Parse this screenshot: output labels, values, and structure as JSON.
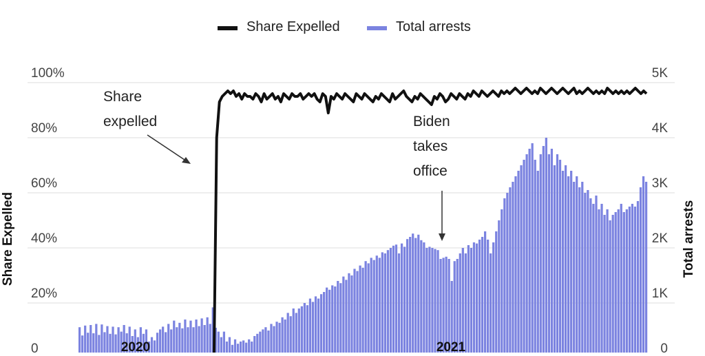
{
  "chart_data": {
    "type": "bar",
    "legend": {
      "placement": "top-center",
      "items": [
        {
          "label": "Share Expelled",
          "color": "#111111",
          "marker": "line"
        },
        {
          "label": "Total arrests",
          "color": "#7b83e0",
          "marker": "bar"
        }
      ]
    },
    "y_left": {
      "label": "Share Expelled",
      "range": [
        0,
        100
      ],
      "ticks": [
        0,
        20,
        40,
        60,
        80,
        100
      ],
      "tick_labels": [
        "0",
        "20%",
        "40%",
        "60%",
        "80%",
        "100%"
      ]
    },
    "y_right": {
      "label": "Total arrests",
      "range": [
        0,
        5000
      ],
      "ticks": [
        0,
        1000,
        2000,
        3000,
        4000,
        5000
      ],
      "tick_labels": [
        "0",
        "1K",
        "2K",
        "3K",
        "4K",
        "5K"
      ]
    },
    "x_labels": [
      "2020",
      "2021"
    ],
    "grid": true,
    "series": [
      {
        "name": "Total arrests",
        "kind": "bar",
        "color": "#7b83e0",
        "axis": "right",
        "values": [
          560,
          410,
          590,
          460,
          600,
          450,
          620,
          420,
          610,
          470,
          580,
          440,
          570,
          430,
          560,
          480,
          600,
          450,
          570,
          400,
          520,
          380,
          560,
          440,
          520,
          300,
          380,
          320,
          460,
          520,
          570,
          470,
          620,
          520,
          680,
          560,
          640,
          540,
          700,
          560,
          680,
          560,
          700,
          580,
          720,
          600,
          740,
          620,
          920,
          550,
          480,
          380,
          480,
          300,
          380,
          240,
          340,
          260,
          300,
          320,
          280,
          340,
          300,
          400,
          440,
          480,
          520,
          560,
          500,
          620,
          580,
          660,
          640,
          740,
          700,
          820,
          760,
          900,
          820,
          900,
          940,
          1000,
          960,
          1080,
          1020,
          1120,
          1080,
          1160,
          1200,
          1280,
          1240,
          1320,
          1300,
          1400,
          1360,
          1480,
          1420,
          1540,
          1500,
          1620,
          1580,
          1680,
          1640,
          1760,
          1720,
          1820,
          1780,
          1860,
          1820,
          1920,
          1900,
          1960,
          2000,
          2040,
          2060,
          1900,
          2080,
          2020,
          2160,
          2200,
          2260,
          2180,
          2240,
          2140,
          2100,
          2000,
          2020,
          2000,
          1980,
          1960,
          1800,
          1820,
          1840,
          1800,
          1400,
          1760,
          1800,
          1900,
          2000,
          1900,
          2050,
          2000,
          2100,
          2080,
          2150,
          2200,
          2300,
          2150,
          1900,
          2100,
          2300,
          2500,
          2700,
          2900,
          3000,
          3100,
          3200,
          3300,
          3400,
          3500,
          3600,
          3700,
          3800,
          3900,
          3600,
          3400,
          3700,
          3850,
          4000,
          3700,
          3800,
          3500,
          3700,
          3600,
          3400,
          3500,
          3300,
          3400,
          3200,
          3300,
          3100,
          3200,
          3000,
          3050,
          2900,
          2800,
          2950,
          2700,
          2800,
          2600,
          2700,
          2500,
          2600,
          2650,
          2700,
          2800,
          2650,
          2700,
          2750,
          2800,
          2750,
          2850,
          3100,
          3300,
          3200
        ]
      },
      {
        "name": "Share Expelled",
        "kind": "line",
        "color": "#111111",
        "axis": "left",
        "values": [
          0,
          0,
          0,
          0,
          0,
          0,
          0,
          0,
          0,
          0,
          0,
          0,
          0,
          0,
          0,
          0,
          0,
          0,
          0,
          0,
          0,
          0,
          0,
          0,
          0,
          0,
          0,
          0,
          0,
          0,
          0,
          0,
          0,
          0,
          0,
          0,
          0,
          0,
          0,
          0,
          0,
          0,
          0,
          0,
          0,
          0,
          0,
          0,
          0,
          80,
          93,
          95,
          96,
          97,
          96,
          97,
          95,
          96,
          94,
          96,
          95,
          95,
          94,
          96,
          95,
          93,
          96,
          94,
          95,
          96,
          94,
          95,
          93,
          96,
          95,
          94,
          96,
          95,
          95,
          96,
          94,
          95,
          96,
          95,
          96,
          94,
          93,
          96,
          95,
          89,
          95,
          94,
          96,
          95,
          94,
          96,
          95,
          94,
          93,
          96,
          95,
          94,
          96,
          95,
          94,
          93,
          95,
          94,
          96,
          95,
          94,
          93,
          96,
          94,
          95,
          96,
          97,
          95,
          94,
          93,
          95,
          94,
          96,
          95,
          94,
          93,
          92,
          95,
          94,
          96,
          95,
          93,
          94,
          96,
          95,
          94,
          96,
          95,
          94,
          96,
          95,
          97,
          96,
          95,
          97,
          96,
          95,
          96,
          97,
          96,
          95,
          97,
          96,
          97,
          96,
          97,
          98,
          97,
          96,
          97,
          98,
          97,
          96,
          97,
          96,
          98,
          97,
          96,
          97,
          98,
          97,
          96,
          97,
          98,
          97,
          96,
          97,
          98,
          96,
          97,
          96,
          97,
          98,
          97,
          96,
          97,
          96,
          97,
          96,
          98,
          97,
          96,
          97,
          96,
          97,
          96,
          97,
          96,
          97,
          98,
          97,
          96,
          97,
          96
        ]
      }
    ],
    "annotations": [
      {
        "text_lines": [
          "Share",
          "expelled"
        ],
        "arrow": true
      },
      {
        "text_lines": [
          "Biden",
          "takes",
          "office"
        ],
        "arrow": true
      }
    ]
  }
}
